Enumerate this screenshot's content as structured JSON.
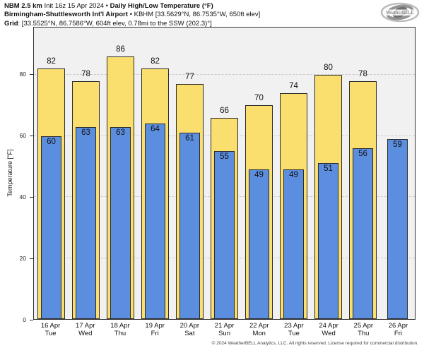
{
  "header": {
    "line1": [
      {
        "text": "NBM 2.5 km"
      },
      {
        "text": " Init 16z 15 Apr 2024 • "
      },
      {
        "text": "Daily High/Low Temperature (°F)"
      }
    ],
    "line2": [
      {
        "text": "Birmingham-Shuttlesworth Int'l Airport"
      },
      {
        "text": " • KBHM [33.5629°N, 86.7535°W, 650ft elev]"
      }
    ],
    "line3": [
      {
        "text": "Grid"
      },
      {
        "text": ": [33.5525°N, 86.7586°W, 604ft elev, 0.78mi to the SSW (202.3)°]"
      }
    ]
  },
  "logo": {
    "text": "WeatherBELL"
  },
  "chart_data": {
    "type": "bar",
    "title": "Daily High/Low Temperature (°F)",
    "xlabel": "",
    "ylabel": "Temperature [°F]",
    "ylim": [
      0,
      95.5
    ],
    "yticks": [
      0,
      20,
      40,
      60,
      80
    ],
    "grid": "horizontal dashed at yticks",
    "legend": "none (values labeled on bars)",
    "categories": [
      "16 Apr Tue",
      "17 Apr Wed",
      "18 Apr Thu",
      "19 Apr Fri",
      "20 Apr Sat",
      "21 Apr Sun",
      "22 Apr Mon",
      "23 Apr Tue",
      "24 Apr Wed",
      "25 Apr Thu",
      "26 Apr Fri"
    ],
    "series": [
      {
        "name": "Daily High",
        "color": "#fade6e",
        "values": [
          82,
          78,
          86,
          82,
          77,
          66,
          70,
          74,
          80,
          78,
          null
        ]
      },
      {
        "name": "Daily Low",
        "color": "#5c8ee0",
        "values": [
          60,
          63,
          63,
          64,
          61,
          55,
          49,
          49,
          51,
          56,
          59
        ]
      }
    ],
    "days": [
      {
        "date": "16 Apr",
        "weekday": "Tue",
        "high": 82,
        "low": 60
      },
      {
        "date": "17 Apr",
        "weekday": "Wed",
        "high": 78,
        "low": 63
      },
      {
        "date": "18 Apr",
        "weekday": "Thu",
        "high": 86,
        "low": 63
      },
      {
        "date": "19 Apr",
        "weekday": "Fri",
        "high": 82,
        "low": 64
      },
      {
        "date": "20 Apr",
        "weekday": "Sat",
        "high": 77,
        "low": 61
      },
      {
        "date": "21 Apr",
        "weekday": "Sun",
        "high": 66,
        "low": 55
      },
      {
        "date": "22 Apr",
        "weekday": "Mon",
        "high": 70,
        "low": 49
      },
      {
        "date": "23 Apr",
        "weekday": "Tue",
        "high": 74,
        "low": 49
      },
      {
        "date": "24 Apr",
        "weekday": "Wed",
        "high": 80,
        "low": 51
      },
      {
        "date": "25 Apr",
        "weekday": "Thu",
        "high": 78,
        "low": 56
      },
      {
        "date": "26 Apr",
        "weekday": "Fri",
        "high": null,
        "low": 59
      }
    ]
  },
  "colors": {
    "high_fill": "#fade6e",
    "low_fill": "#5c8ee0",
    "bar_border": "#2b2b2b",
    "plot_bg": "#f1f1f1",
    "plot_border": "#333333",
    "gridline": "#c9c9c9",
    "text": "#111111"
  },
  "footer": {
    "text": "© 2024 WeatherBELL Analytics, LLC. All rights reserved. License required for commercial distribution."
  }
}
